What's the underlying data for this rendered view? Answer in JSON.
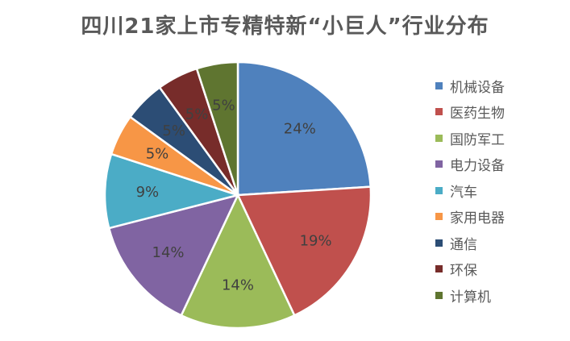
{
  "chart_data": {
    "type": "pie",
    "title": "四川21家上市专精特新“小巨人”行业分布",
    "categories": [
      "机械设备",
      "医药生物",
      "国防军工",
      "电力设备",
      "汽车",
      "家用电器",
      "通信",
      "环保",
      "计算机"
    ],
    "values": [
      24,
      19,
      14,
      14,
      9,
      5,
      5,
      5,
      5
    ],
    "labels": [
      "24%",
      "19%",
      "14%",
      "14%",
      "9%",
      "5%",
      "5%",
      "5%",
      "5%"
    ],
    "colors": [
      "#4F81BD",
      "#C0504D",
      "#9BBB59",
      "#8064A2",
      "#4BACC6",
      "#F79646",
      "#2C4D75",
      "#772C2A",
      "#5F7530"
    ],
    "legend_position": "right"
  }
}
